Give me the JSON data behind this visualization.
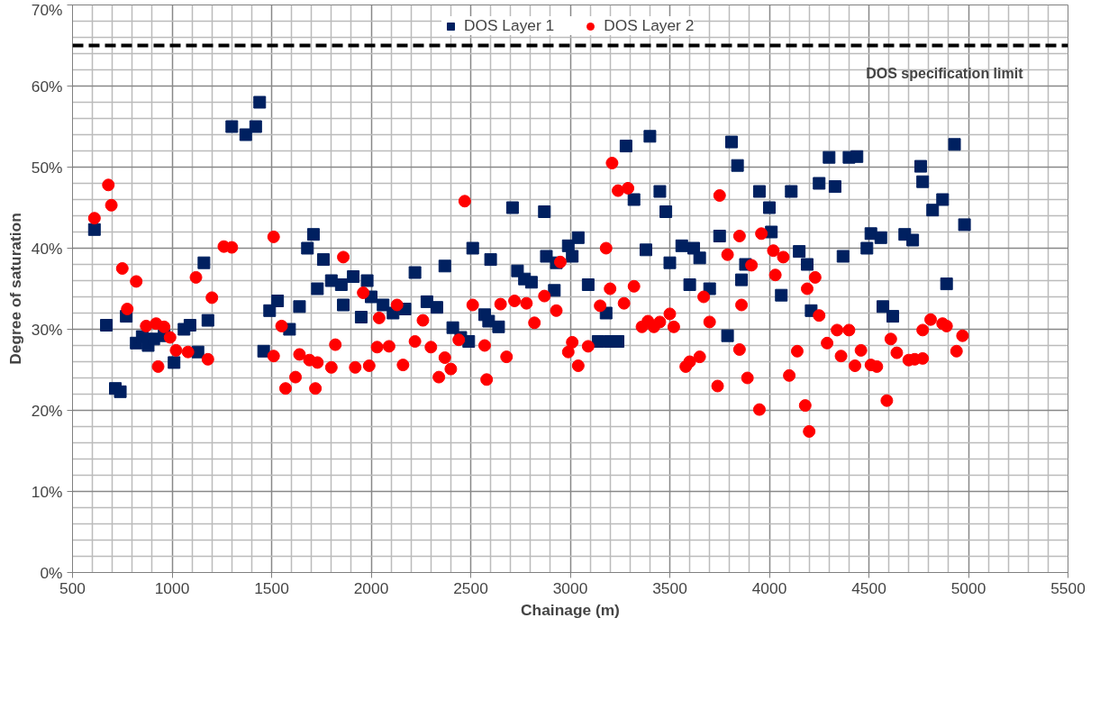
{
  "chart_data": {
    "type": "scatter",
    "xlabel": "Chainage (m)",
    "ylabel": "Degree of saturation",
    "xlim": [
      500,
      5500
    ],
    "xticks": [
      500,
      1000,
      1500,
      2000,
      2500,
      3000,
      3500,
      4000,
      4500,
      5000,
      5500
    ],
    "ylim": [
      0,
      70
    ],
    "yticks": [
      {
        "value": 0,
        "label": "0%"
      },
      {
        "value": 10,
        "label": "10%"
      },
      {
        "value": 20,
        "label": "20%"
      },
      {
        "value": 30,
        "label": "30%"
      },
      {
        "value": 40,
        "label": "40%"
      },
      {
        "value": 50,
        "label": "50%"
      },
      {
        "value": 60,
        "label": "60%"
      },
      {
        "value": 70,
        "label": "70%"
      }
    ],
    "grid": true,
    "legend": "top",
    "ref_lines": [
      {
        "axis": "y",
        "value": 65,
        "label": "DOS specification limit",
        "color": "#000000",
        "line_style": "dashed"
      }
    ],
    "series": [
      {
        "name": "DOS Layer 1",
        "color": "#002060",
        "marker": "square",
        "x": [
          610,
          670,
          715,
          740,
          770,
          820,
          850,
          880,
          908,
          960,
          1010,
          1060,
          1090,
          1130,
          1160,
          1180,
          1300,
          1370,
          1420,
          1440,
          1460,
          1490,
          1530,
          1590,
          1640,
          1680,
          1710,
          1730,
          1760,
          1800,
          1850,
          1860,
          1910,
          1950,
          1980,
          2000,
          2060,
          2110,
          2170,
          2220,
          2280,
          2330,
          2370,
          2410,
          2450,
          2490,
          2510,
          2570,
          2590,
          2600,
          2640,
          2710,
          2735,
          2770,
          2805,
          2870,
          2880,
          2920,
          2930,
          2990,
          3010,
          3040,
          3090,
          3140,
          3180,
          3200,
          3240,
          3280,
          3320,
          3380,
          3400,
          3450,
          3480,
          3500,
          3560,
          3600,
          3620,
          3650,
          3700,
          3750,
          3790,
          3810,
          3840,
          3860,
          3880,
          3950,
          4000,
          4010,
          4060,
          4110,
          4150,
          4190,
          4210,
          4250,
          4300,
          4330,
          4370,
          4400,
          4440,
          4490,
          4510,
          4560,
          4570,
          4620,
          4680,
          4720,
          4760,
          4770,
          4820,
          4870,
          4890,
          4930,
          4980
        ],
        "values": [
          42.3,
          30.5,
          22.7,
          22.3,
          31.6,
          28.3,
          29.1,
          28.0,
          28.8,
          29.2,
          25.9,
          30.0,
          30.5,
          27.2,
          38.2,
          31.1,
          55.0,
          54.0,
          55.0,
          58.0,
          27.3,
          32.3,
          33.5,
          30.0,
          32.8,
          40.0,
          41.7,
          35.0,
          38.6,
          36.0,
          35.5,
          33.0,
          36.5,
          31.5,
          36.0,
          34.0,
          33.0,
          32.0,
          32.5,
          37.0,
          33.4,
          32.7,
          37.8,
          30.2,
          29.0,
          28.5,
          40.0,
          31.8,
          31.0,
          38.6,
          30.3,
          45.0,
          37.2,
          36.2,
          35.8,
          44.5,
          39.0,
          34.8,
          38.2,
          40.3,
          39.0,
          41.3,
          35.5,
          28.5,
          32.0,
          28.5,
          28.5,
          52.6,
          46.0,
          39.8,
          53.8,
          47.0,
          44.5,
          38.2,
          40.3,
          35.5,
          40.0,
          38.8,
          35.0,
          41.5,
          29.2,
          53.1,
          50.2,
          36.1,
          38.0,
          47.0,
          45.0,
          42.0,
          34.2,
          47.0,
          39.6,
          38.0,
          32.3,
          48.0,
          51.2,
          47.6,
          39.0,
          51.2,
          51.3,
          40.0,
          41.8,
          41.3,
          32.8,
          31.6,
          41.7,
          41.0,
          50.1,
          48.2,
          44.7,
          46.0,
          35.6,
          52.8,
          42.9
        ]
      },
      {
        "name": "DOS Layer 2",
        "color": "#ff0000",
        "marker": "circle",
        "x": [
          610,
          680,
          695,
          750,
          775,
          820,
          870,
          920,
          930,
          960,
          990,
          1020,
          1080,
          1120,
          1180,
          1200,
          1260,
          1300,
          1510,
          1510,
          1550,
          1570,
          1620,
          1640,
          1690,
          1720,
          1730,
          1800,
          1820,
          1860,
          1920,
          1960,
          1990,
          2030,
          2040,
          2090,
          2130,
          2160,
          2220,
          2260,
          2300,
          2340,
          2370,
          2400,
          2440,
          2470,
          2510,
          2570,
          2580,
          2650,
          2680,
          2720,
          2780,
          2820,
          2870,
          2930,
          2950,
          2990,
          3010,
          3040,
          3090,
          3150,
          3180,
          3200,
          3210,
          3240,
          3270,
          3290,
          3320,
          3360,
          3390,
          3420,
          3450,
          3500,
          3520,
          3580,
          3600,
          3650,
          3670,
          3700,
          3740,
          3750,
          3790,
          3850,
          3850,
          3860,
          3890,
          3910,
          3950,
          3960,
          4020,
          4030,
          4070,
          4100,
          4140,
          4180,
          4190,
          4200,
          4230,
          4250,
          4290,
          4340,
          4360,
          4400,
          4430,
          4460,
          4510,
          4540,
          4590,
          4610,
          4640,
          4700,
          4730,
          4770,
          4770,
          4810,
          4870,
          4890,
          4940,
          4970
        ],
        "values": [
          43.7,
          47.8,
          45.3,
          37.5,
          32.5,
          35.9,
          30.4,
          30.7,
          25.4,
          30.3,
          29.0,
          27.4,
          27.2,
          36.4,
          26.3,
          33.9,
          40.2,
          40.1,
          41.4,
          26.7,
          30.4,
          22.7,
          24.1,
          26.9,
          26.2,
          22.7,
          25.9,
          25.3,
          28.1,
          38.9,
          25.3,
          34.5,
          25.5,
          27.8,
          31.4,
          27.9,
          33.0,
          25.6,
          28.5,
          31.1,
          27.8,
          24.1,
          26.5,
          25.1,
          28.7,
          45.8,
          33.0,
          28.0,
          23.8,
          33.1,
          26.6,
          33.5,
          33.2,
          30.8,
          34.1,
          32.3,
          38.3,
          27.2,
          28.4,
          25.5,
          27.9,
          32.9,
          40.0,
          35.0,
          50.5,
          47.1,
          33.2,
          47.4,
          35.3,
          30.3,
          31.0,
          30.3,
          30.9,
          31.9,
          30.3,
          25.4,
          26.0,
          26.6,
          34.0,
          30.9,
          23.0,
          46.5,
          39.2,
          27.5,
          41.5,
          33.0,
          24.0,
          37.9,
          20.1,
          41.8,
          39.7,
          36.7,
          38.9,
          24.3,
          27.3,
          20.6,
          35.0,
          17.4,
          36.4,
          31.7,
          28.3,
          29.9,
          26.7,
          29.9,
          25.5,
          27.4,
          25.6,
          25.4,
          21.2,
          28.8,
          27.1,
          26.2,
          26.3,
          26.4,
          29.9,
          31.2,
          30.7,
          30.4,
          27.3,
          29.2
        ]
      }
    ]
  }
}
